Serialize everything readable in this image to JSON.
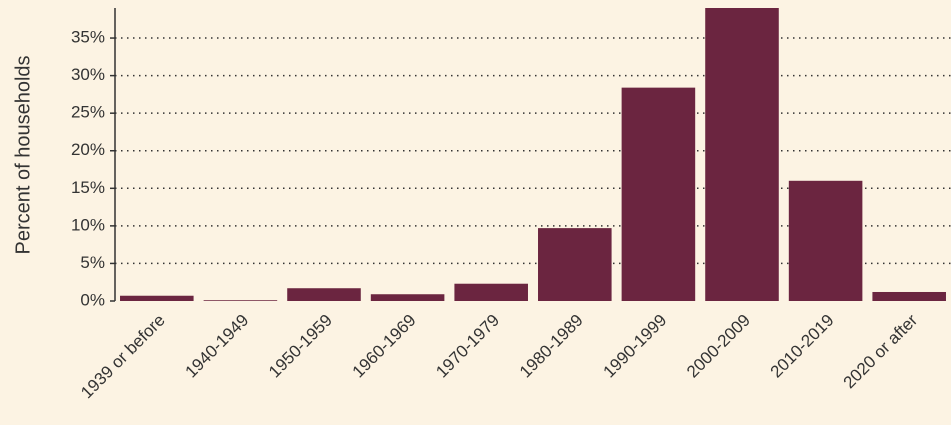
{
  "chart_data": {
    "type": "bar",
    "y_label": "Percent of households",
    "categories": [
      "1939 or before",
      "1940-1949",
      "1950-1959",
      "1960-1969",
      "1970-1979",
      "1980-1989",
      "1990-1999",
      "2000-2009",
      "2010-2019",
      "2020 or after"
    ],
    "values": [
      0.7,
      0.1,
      1.7,
      0.9,
      2.3,
      9.7,
      28.4,
      39.0,
      16.0,
      1.2
    ],
    "color": "#6b2540",
    "ylim": [
      0,
      39
    ],
    "yticks": [
      {
        "value": 0,
        "label": "0%"
      },
      {
        "value": 5,
        "label": "5%"
      },
      {
        "value": 10,
        "label": "10%"
      },
      {
        "value": 15,
        "label": "15%"
      },
      {
        "value": 20,
        "label": "20%"
      },
      {
        "value": 25,
        "label": "25%"
      },
      {
        "value": 30,
        "label": "30%"
      },
      {
        "value": 35,
        "label": "35%"
      }
    ],
    "grid": true
  }
}
